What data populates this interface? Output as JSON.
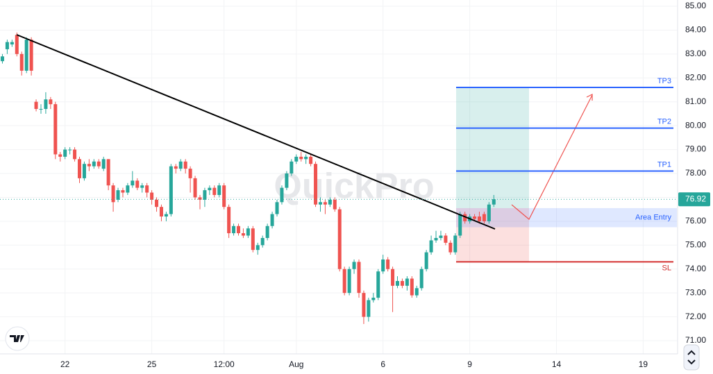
{
  "chart_data": {
    "type": "candlestick",
    "watermark": "QuickPro",
    "x": [
      0,
      1,
      2,
      3,
      4,
      5,
      6,
      7,
      8,
      9,
      10,
      11,
      12,
      13,
      14,
      15,
      16,
      17,
      18,
      19,
      20,
      21,
      22,
      23,
      24,
      25,
      26,
      27,
      28,
      29,
      30,
      31,
      32,
      33,
      34,
      35,
      36,
      37,
      38,
      39,
      40,
      41,
      42,
      43,
      44,
      45,
      46,
      47,
      48,
      49,
      50,
      51,
      52,
      53,
      54,
      55,
      56,
      57,
      58,
      59,
      60,
      61,
      62,
      63,
      64,
      65,
      66,
      67,
      68,
      69,
      70,
      71,
      72,
      73,
      74,
      75,
      76,
      77,
      78,
      79,
      80,
      81,
      82,
      83,
      84,
      85,
      86,
      87,
      88,
      89,
      90,
      91,
      92,
      93,
      94,
      95,
      96,
      97,
      98,
      99,
      100,
      101,
      102
    ],
    "open": [
      82.7,
      83.2,
      83.4,
      83.8,
      83.0,
      82.3,
      83.6,
      81.0,
      80.7,
      80.7,
      81.1,
      80.9,
      78.8,
      78.7,
      79.0,
      79.0,
      78.6,
      77.8,
      78.4,
      78.3,
      78.5,
      78.2,
      78.6,
      77.5,
      76.9,
      77.3,
      77.2,
      77.5,
      77.7,
      77.4,
      77.5,
      77.2,
      76.9,
      76.6,
      76.2,
      76.3,
      78.3,
      78.2,
      78.5,
      78.2,
      77.8,
      77.0,
      76.9,
      77.3,
      77.4,
      77.1,
      77.5,
      76.6,
      75.5,
      75.8,
      75.5,
      75.4,
      75.7,
      74.8,
      75.0,
      75.3,
      75.8,
      76.3,
      76.8,
      77.4,
      78.0,
      78.5,
      78.7,
      78.6,
      78.7,
      78.4,
      76.7,
      76.8,
      76.7,
      76.9,
      76.5,
      74.0,
      73.0,
      74.0,
      74.3,
      73.0,
      72.0,
      72.7,
      72.8,
      73.9,
      74.4,
      74.0,
      73.3,
      73.5,
      73.3,
      73.6,
      72.9,
      73.2,
      74.0,
      74.7,
      75.2,
      75.3,
      75.4,
      75.1,
      74.7,
      75.4,
      76.3,
      76.0,
      76.2,
      76.2,
      76.3,
      76.0,
      76.7
    ],
    "high": [
      83.0,
      83.6,
      83.6,
      83.9,
      83.1,
      83.7,
      83.7,
      81.1,
      80.9,
      81.4,
      81.2,
      81.0,
      78.9,
      79.1,
      79.1,
      79.1,
      78.7,
      78.5,
      78.6,
      78.6,
      78.6,
      78.7,
      78.6,
      77.6,
      77.4,
      77.4,
      77.6,
      78.1,
      77.8,
      77.6,
      77.6,
      77.3,
      77.0,
      76.7,
      76.4,
      78.4,
      78.4,
      78.6,
      78.6,
      78.3,
      77.9,
      77.1,
      77.4,
      77.5,
      77.5,
      77.6,
      77.6,
      76.7,
      75.9,
      75.9,
      75.7,
      75.8,
      75.8,
      75.1,
      75.4,
      75.9,
      76.4,
      76.9,
      77.5,
      78.1,
      78.6,
      78.8,
      78.9,
      78.8,
      78.8,
      78.5,
      77.0,
      76.9,
      77.0,
      77.0,
      76.6,
      74.1,
      74.1,
      74.4,
      74.4,
      73.1,
      72.8,
      73.0,
      74.0,
      74.6,
      74.5,
      74.1,
      73.7,
      73.6,
      73.7,
      73.7,
      73.3,
      74.1,
      74.8,
      75.4,
      75.6,
      75.6,
      75.5,
      75.2,
      75.5,
      76.4,
      76.4,
      76.3,
      76.3,
      76.4,
      76.4,
      76.8,
      77.1
    ],
    "low": [
      82.6,
      83.0,
      83.3,
      82.9,
      82.1,
      82.2,
      82.1,
      80.6,
      80.5,
      80.5,
      80.7,
      78.6,
      78.5,
      78.6,
      78.8,
      78.5,
      77.6,
      77.7,
      78.1,
      78.2,
      78.2,
      78.1,
      77.3,
      76.4,
      76.8,
      77.0,
      77.1,
      77.4,
      77.3,
      77.2,
      77.0,
      76.7,
      76.4,
      76.0,
      76.0,
      76.2,
      78.0,
      78.1,
      78.0,
      77.2,
      76.9,
      76.5,
      76.6,
      77.1,
      77.0,
      77.0,
      76.5,
      75.3,
      75.4,
      75.4,
      75.3,
      75.3,
      74.7,
      74.6,
      74.9,
      75.2,
      75.7,
      76.2,
      76.7,
      77.3,
      77.9,
      78.4,
      78.5,
      78.4,
      78.3,
      76.6,
      76.4,
      76.3,
      76.6,
      76.4,
      73.9,
      72.9,
      72.9,
      73.8,
      72.8,
      71.7,
      71.8,
      72.6,
      72.7,
      73.8,
      73.9,
      72.2,
      73.2,
      73.2,
      73.1,
      72.8,
      72.8,
      73.1,
      73.9,
      74.6,
      75.1,
      75.2,
      75.0,
      74.6,
      74.6,
      75.3,
      75.9,
      75.9,
      76.0,
      75.9,
      75.9,
      75.9,
      76.6
    ],
    "close": [
      82.9,
      83.5,
      83.5,
      83.0,
      82.3,
      83.6,
      82.3,
      80.7,
      80.7,
      81.1,
      80.9,
      78.8,
      78.7,
      79.0,
      79.0,
      78.6,
      77.8,
      78.4,
      78.3,
      78.5,
      78.3,
      78.6,
      77.5,
      76.8,
      77.3,
      77.2,
      77.5,
      77.7,
      77.4,
      77.5,
      77.2,
      76.9,
      76.6,
      76.2,
      76.3,
      78.3,
      78.2,
      78.5,
      78.2,
      77.8,
      77.0,
      76.9,
      77.3,
      77.4,
      77.1,
      77.5,
      76.6,
      75.5,
      75.8,
      75.5,
      75.4,
      75.7,
      74.8,
      75.0,
      75.3,
      75.8,
      76.3,
      76.8,
      77.4,
      78.0,
      78.5,
      78.7,
      78.6,
      78.7,
      78.4,
      76.7,
      76.8,
      76.7,
      76.9,
      76.5,
      74.0,
      73.0,
      74.0,
      74.3,
      73.0,
      72.0,
      72.7,
      72.8,
      73.9,
      74.4,
      74.0,
      73.3,
      73.5,
      73.3,
      73.6,
      72.9,
      73.2,
      74.0,
      74.7,
      75.2,
      75.3,
      75.4,
      75.1,
      74.7,
      75.4,
      76.3,
      76.0,
      76.2,
      76.1,
      76.0,
      76.0,
      76.7,
      76.92
    ],
    "up_color": "#26a69a",
    "down_color": "#ef5350",
    "xlim": [
      -0.5,
      140
    ],
    "xticks": [
      {
        "value": 13,
        "label": "22"
      },
      {
        "value": 31,
        "label": "25"
      },
      {
        "value": 46,
        "label": "12:00"
      },
      {
        "value": 61,
        "label": "Aug"
      },
      {
        "value": 79,
        "label": "6"
      },
      {
        "value": 97,
        "label": "9"
      },
      {
        "value": 115,
        "label": "14"
      },
      {
        "value": 133,
        "label": "19"
      }
    ],
    "ylim": [
      70.74,
      85.26
    ],
    "yticks": [
      {
        "value": 71,
        "label": "71.00"
      },
      {
        "value": 72,
        "label": "72.00"
      },
      {
        "value": 73,
        "label": "73.00"
      },
      {
        "value": 74,
        "label": "74.00"
      },
      {
        "value": 75,
        "label": "75.00"
      },
      {
        "value": 76,
        "label": "76.00"
      },
      {
        "value": 77,
        "label": "77.00"
      },
      {
        "value": 78,
        "label": "78.00"
      },
      {
        "value": 79,
        "label": "79.00"
      },
      {
        "value": 80,
        "label": "80.00"
      },
      {
        "value": 81,
        "label": "81.00"
      },
      {
        "value": 82,
        "label": "82.00"
      },
      {
        "value": 83,
        "label": "83.00"
      },
      {
        "value": 84,
        "label": "84.00"
      },
      {
        "value": 85,
        "label": "85.00"
      }
    ],
    "grid": true,
    "levels": [
      {
        "label": "TP3",
        "value": 81.6,
        "color": "#2962ff"
      },
      {
        "label": "TP2",
        "value": 79.9,
        "color": "#2962ff"
      },
      {
        "label": "TP1",
        "value": 78.1,
        "color": "#2962ff"
      },
      {
        "label": "SL",
        "value": 74.3,
        "color": "#d32f2f"
      }
    ],
    "entry_zone": {
      "label": "Area Entry",
      "range": [
        75.75,
        76.55
      ]
    },
    "last_price": 76.92
  }
}
